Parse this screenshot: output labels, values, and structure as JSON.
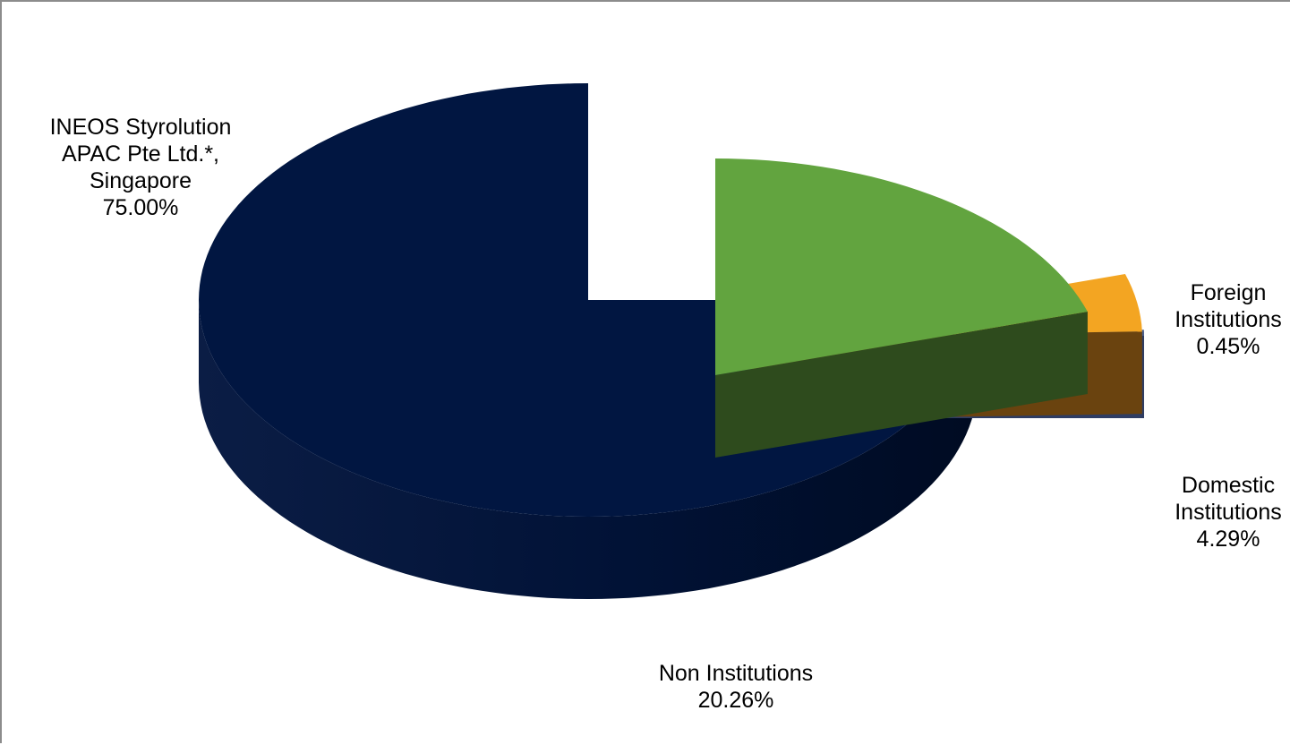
{
  "chart_data": {
    "type": "pie",
    "style": "3d-exploded",
    "title": "",
    "slices": [
      {
        "label_lines": [
          "INEOS Styrolution",
          "APAC Pte Ltd.*,",
          "Singapore"
        ],
        "value": 75.0,
        "value_label": "75.00%",
        "color": "#011641"
      },
      {
        "label_lines": [
          "Non Institutions"
        ],
        "value": 20.26,
        "value_label": "20.26%",
        "color": "#62a43f"
      },
      {
        "label_lines": [
          "Domestic",
          "Institutions"
        ],
        "value": 4.29,
        "value_label": "4.29%",
        "color": "#f3a522"
      },
      {
        "label_lines": [
          "Foreign",
          "Institutions"
        ],
        "value": 0.45,
        "value_label": "0.45%",
        "color": "#4b5f8c"
      }
    ]
  }
}
